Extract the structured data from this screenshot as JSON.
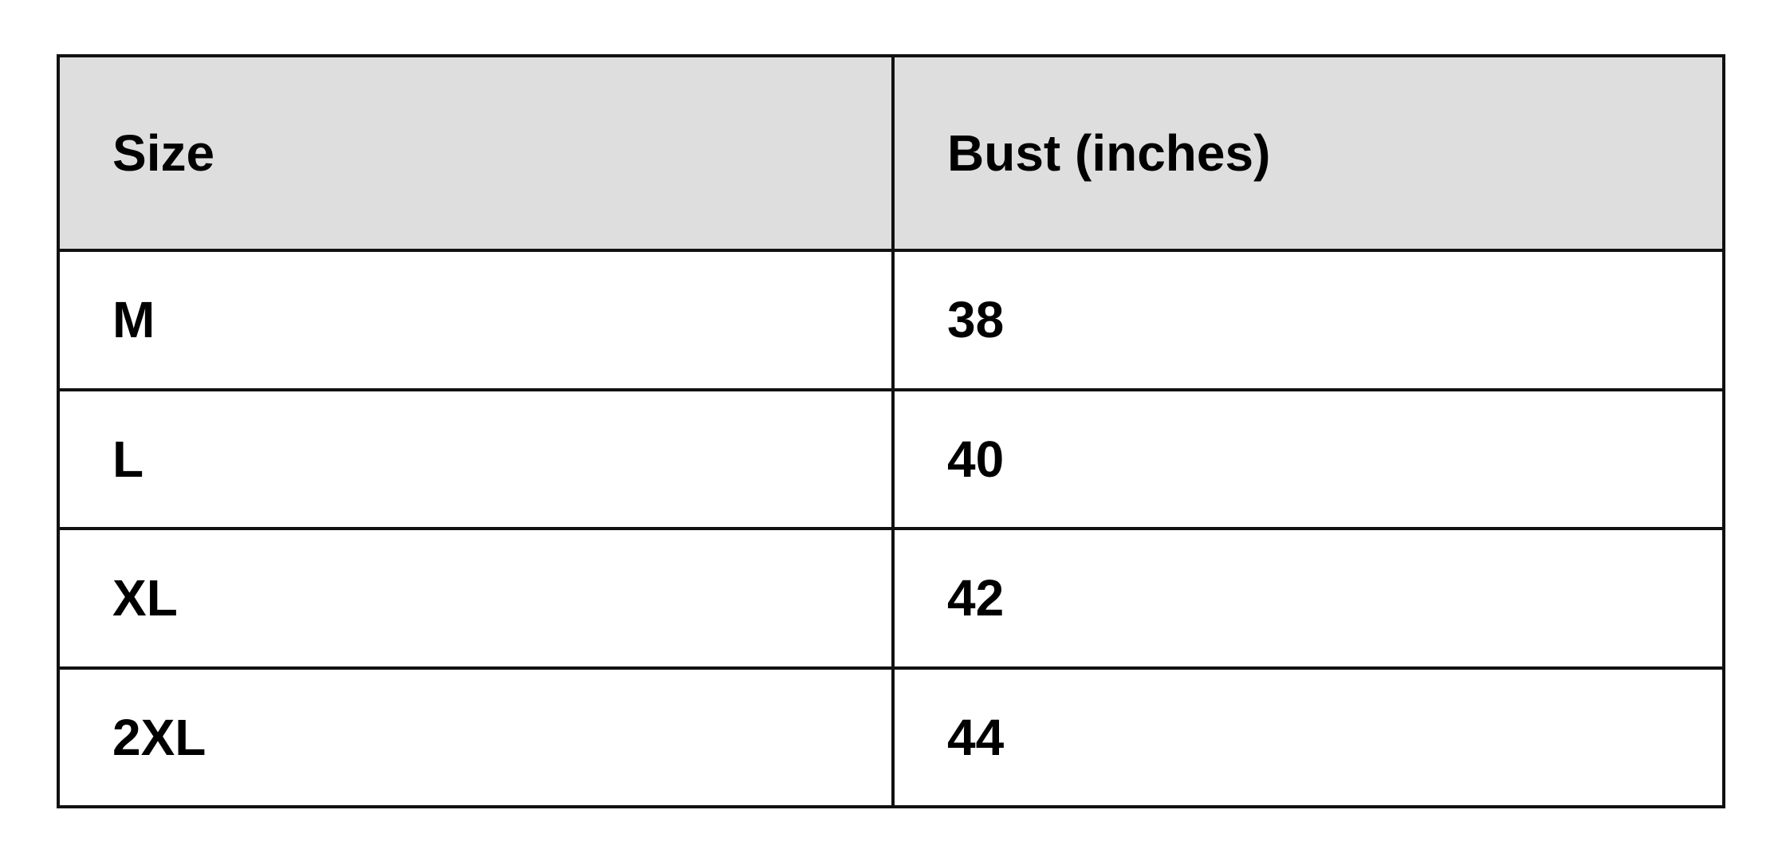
{
  "table": {
    "headers": [
      "Size",
      "Bust (inches)"
    ],
    "rows": [
      [
        "M",
        "38"
      ],
      [
        "L",
        "40"
      ],
      [
        "XL",
        "42"
      ],
      [
        "2XL",
        "44"
      ]
    ],
    "header_background": "#dedede",
    "border_color": "#111111"
  }
}
